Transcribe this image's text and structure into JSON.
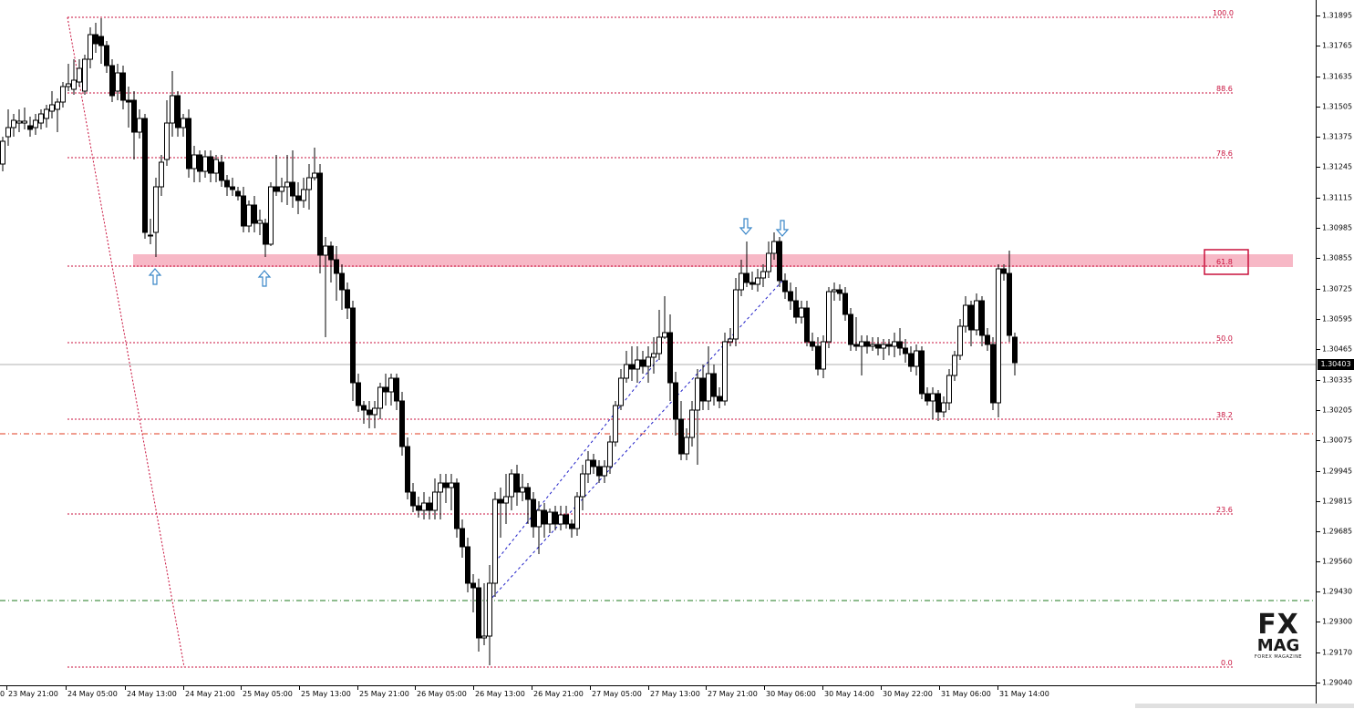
{
  "chart": {
    "symbol_note": "",
    "current_price": "1.30403",
    "price_labels": [
      "1.31895",
      "1.31765",
      "1.31635",
      "1.31505",
      "1.31375",
      "1.31245",
      "1.31115",
      "1.30985",
      "1.30855",
      "1.30725",
      "1.30595",
      "1.30465",
      "1.30335",
      "1.30205",
      "1.30075",
      "1.29945",
      "1.29815",
      "1.29685",
      "1.29560",
      "1.29430",
      "1.29300",
      "1.29170",
      "1.29040"
    ],
    "time_labels": [
      "0",
      "23 May 21:00",
      "24 May 05:00",
      "24 May 13:00",
      "24 May 21:00",
      "25 May 05:00",
      "25 May 13:00",
      "25 May 21:00",
      "26 May 05:00",
      "26 May 13:00",
      "26 May 21:00",
      "27 May 05:00",
      "27 May 13:00",
      "27 May 21:00",
      "30 May 06:00",
      "30 May 14:00",
      "30 May 22:00",
      "31 May 06:00",
      "31 May 14:00"
    ],
    "fib_levels": [
      "100.0",
      "88.6",
      "78.6",
      "61.8",
      "50.0",
      "38.2",
      "23.6",
      "0.0"
    ],
    "colors": {
      "bull_candle": "#ffffff",
      "bear_candle": "#000000",
      "fib_line": "#c8103c",
      "resistance_zone": "#f7b8c6",
      "red_dashdot": "#e23b1f",
      "green_dashdot": "#1e7a1e",
      "blue_channel": "#1f1fc8",
      "arrow": "#3a86c8"
    }
  },
  "logo": {
    "line1": "FX",
    "line2": "MAG",
    "line3": "FOREX MAGAZINE"
  }
}
